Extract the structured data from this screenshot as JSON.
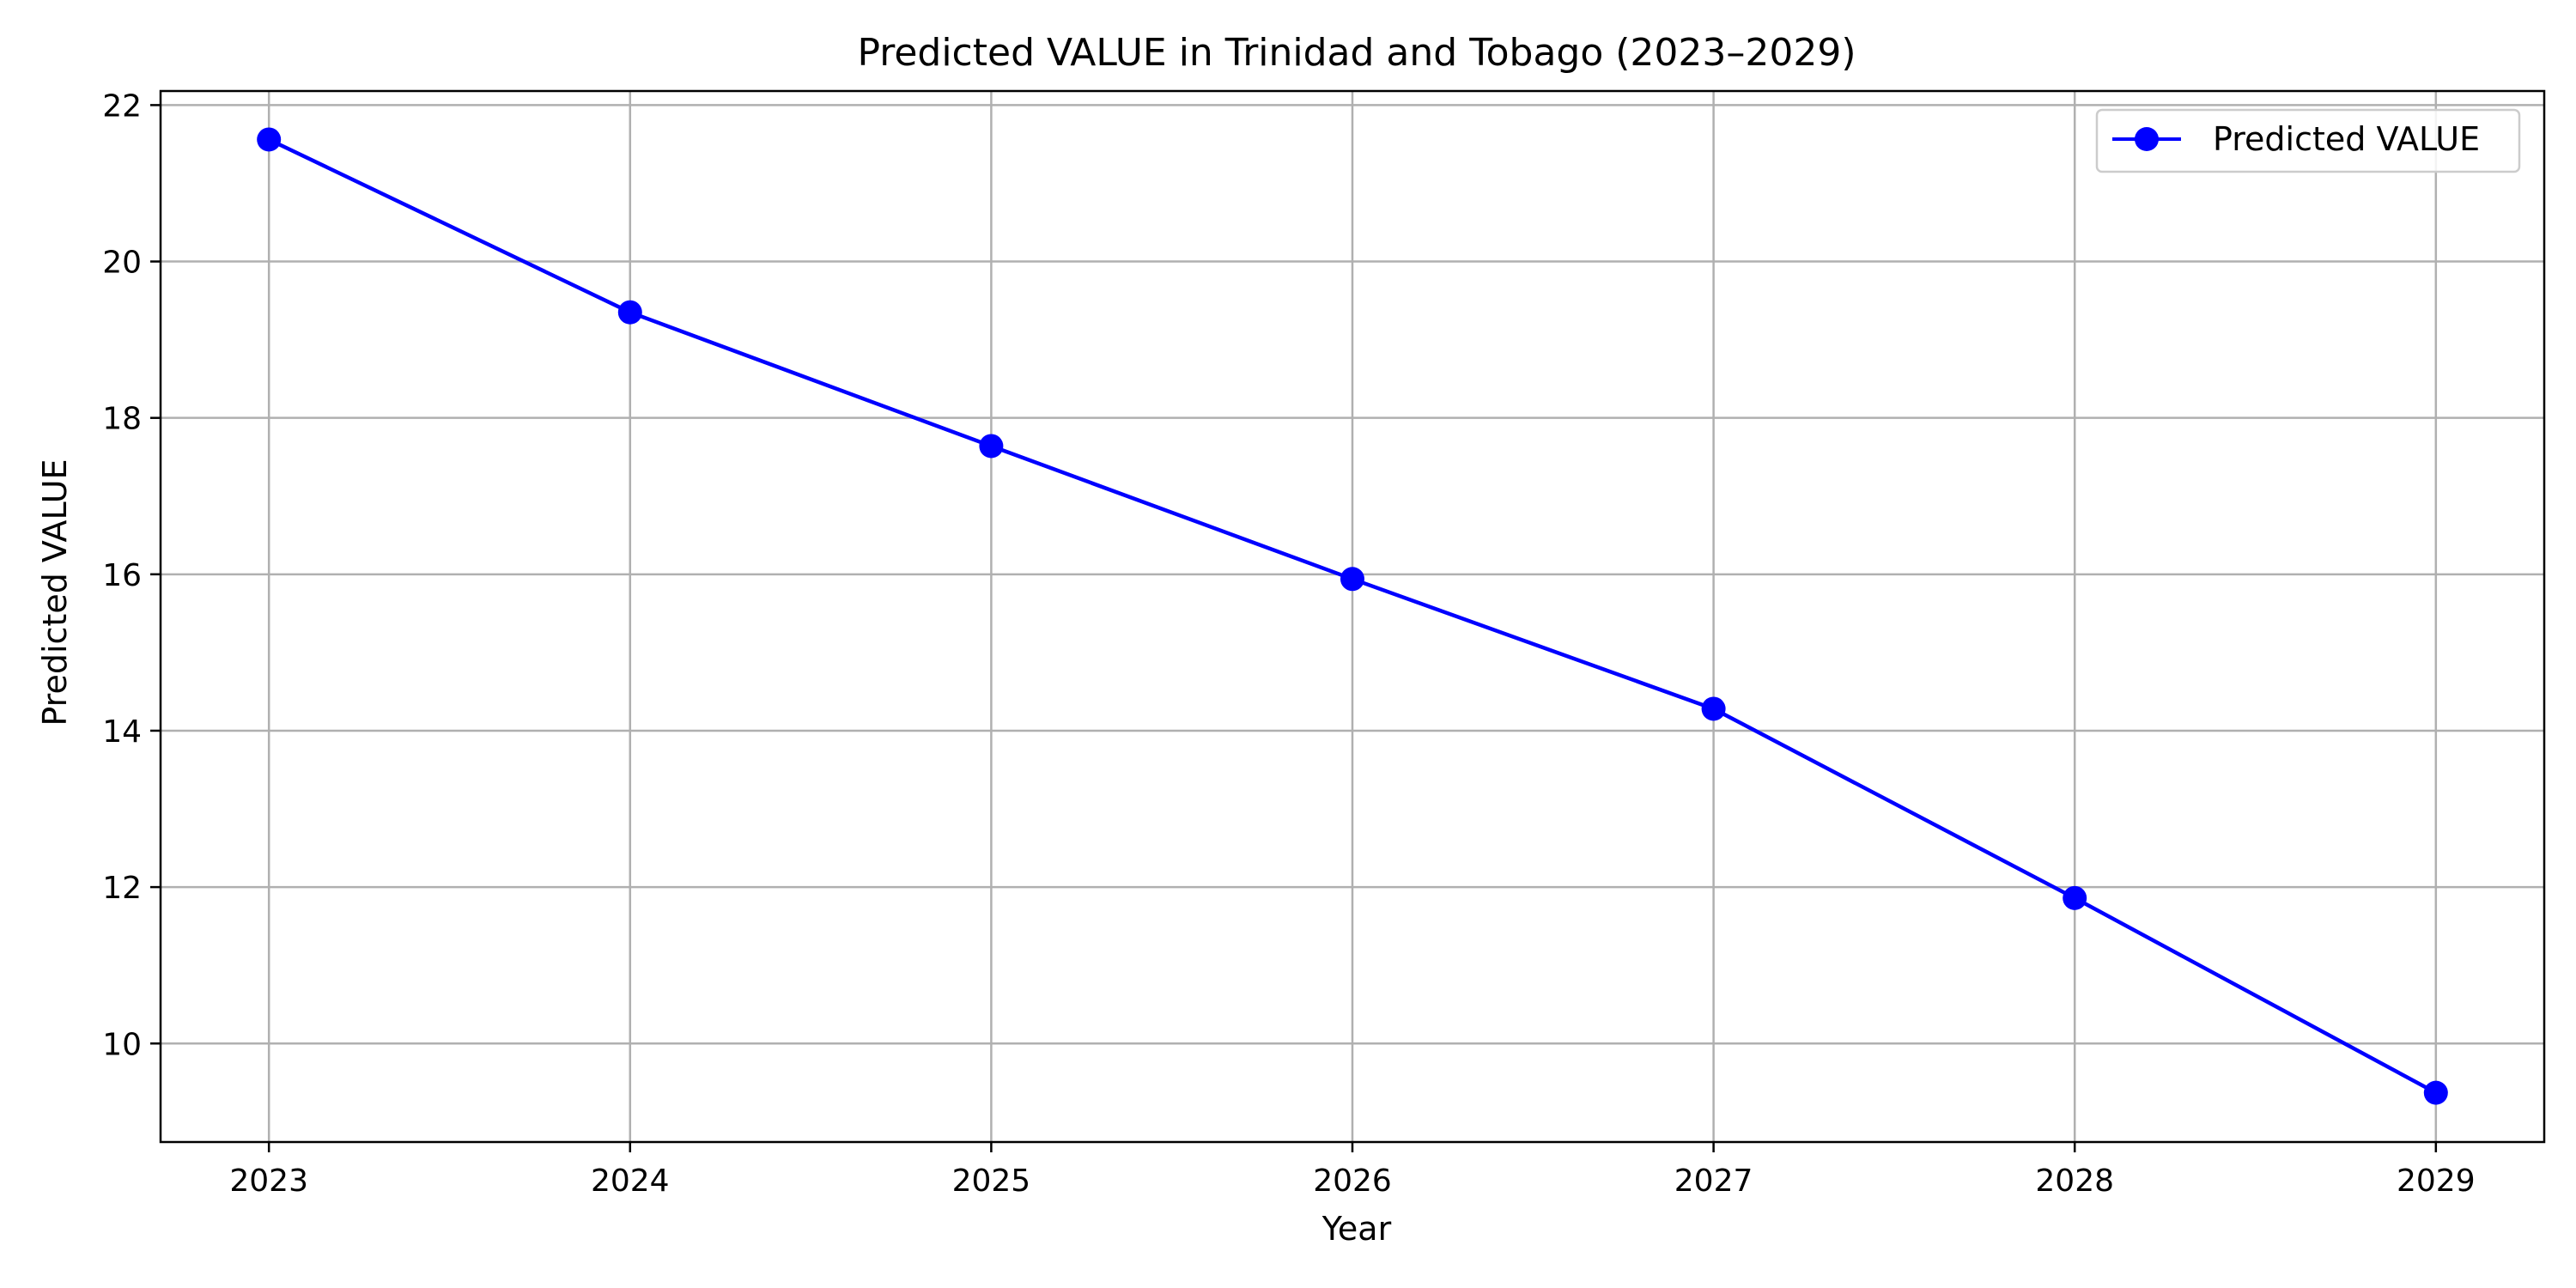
{
  "chart_data": {
    "type": "line",
    "title": "Predicted VALUE in Trinidad and Tobago (2023–2029)",
    "xlabel": "Year",
    "ylabel": "Predicted VALUE",
    "x": [
      2023,
      2024,
      2025,
      2026,
      2027,
      2028,
      2029
    ],
    "x_tick_labels": [
      "2023",
      "2024",
      "2025",
      "2026",
      "2027",
      "2028",
      "2029"
    ],
    "y_ticks": [
      10,
      12,
      14,
      16,
      18,
      20,
      22
    ],
    "y_tick_labels": [
      "10",
      "12",
      "14",
      "16",
      "18",
      "20",
      "22"
    ],
    "xlim": [
      2022.7,
      2029.3
    ],
    "ylim": [
      8.74,
      22.18
    ],
    "grid": true,
    "legend_position": "top-right",
    "series": [
      {
        "name": "Predicted VALUE",
        "color": "#0000ff",
        "marker": "circle",
        "values": [
          21.56,
          19.35,
          17.64,
          15.94,
          14.28,
          11.86,
          9.37
        ]
      }
    ]
  }
}
